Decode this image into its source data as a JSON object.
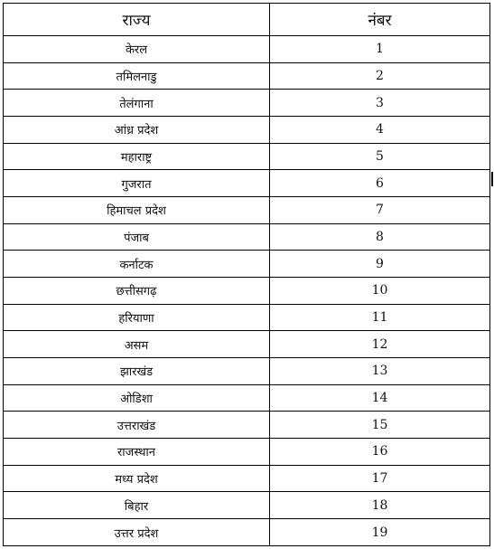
{
  "table": {
    "headers": {
      "state": "राज्य",
      "number": "नंबर"
    },
    "rows": [
      {
        "state": "केरल",
        "number": "1"
      },
      {
        "state": "तमिलनाडु",
        "number": "2"
      },
      {
        "state": "तेलंगाना",
        "number": "3"
      },
      {
        "state": "आंध्र प्रदेश",
        "number": "4"
      },
      {
        "state": "महाराष्ट्र",
        "number": "5"
      },
      {
        "state": "गुजरात",
        "number": "6"
      },
      {
        "state": "हिमाचल प्रदेश",
        "number": "7"
      },
      {
        "state": "पंजाब",
        "number": "8"
      },
      {
        "state": "कर्नाटक",
        "number": "9"
      },
      {
        "state": "छत्तीसगढ़",
        "number": "10"
      },
      {
        "state": "हरियाणा",
        "number": "11"
      },
      {
        "state": "असम",
        "number": "12"
      },
      {
        "state": "झारखंड",
        "number": "13"
      },
      {
        "state": "ओडिशा",
        "number": "14"
      },
      {
        "state": "उत्तराखंड",
        "number": "15"
      },
      {
        "state": "राजस्थान",
        "number": "16"
      },
      {
        "state": "मध्य प्रदेश",
        "number": "17"
      },
      {
        "state": "बिहार",
        "number": "18"
      },
      {
        "state": "उत्तर प्रदेश",
        "number": "19"
      }
    ]
  }
}
